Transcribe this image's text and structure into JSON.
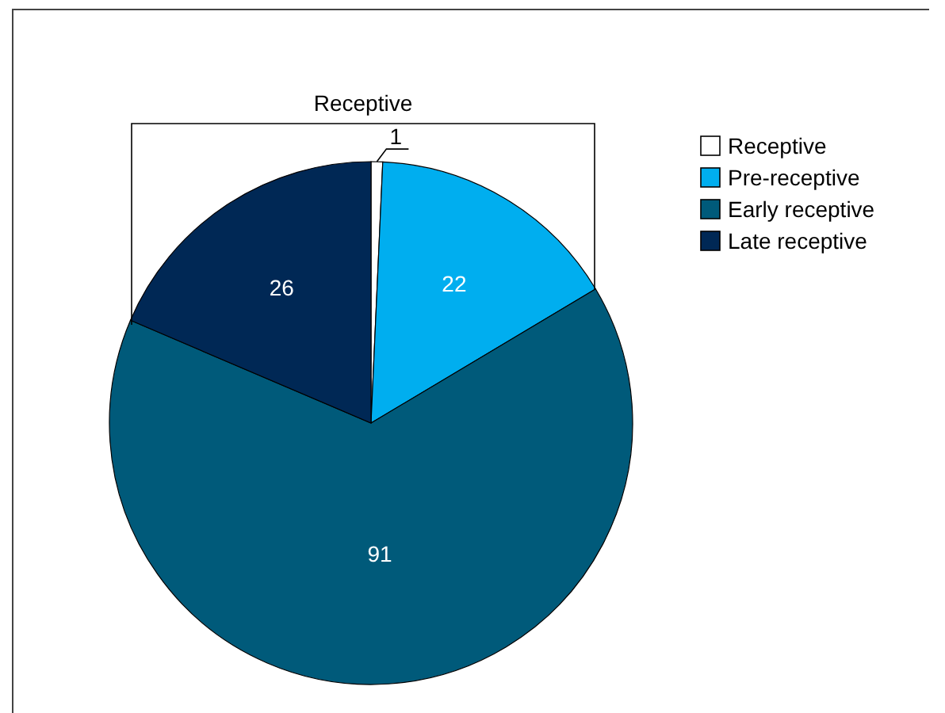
{
  "chart_data": {
    "type": "pie",
    "categories": [
      "Receptive",
      "Pre-receptive",
      "Early receptive",
      "Late receptive"
    ],
    "values": [
      1,
      22,
      91,
      26
    ],
    "colors": [
      "#ffffff",
      "#00aeef",
      "#005a7a",
      "#002855"
    ],
    "data_labels": true,
    "legend": "top right",
    "annotations": [
      "Receptive"
    ]
  }
}
